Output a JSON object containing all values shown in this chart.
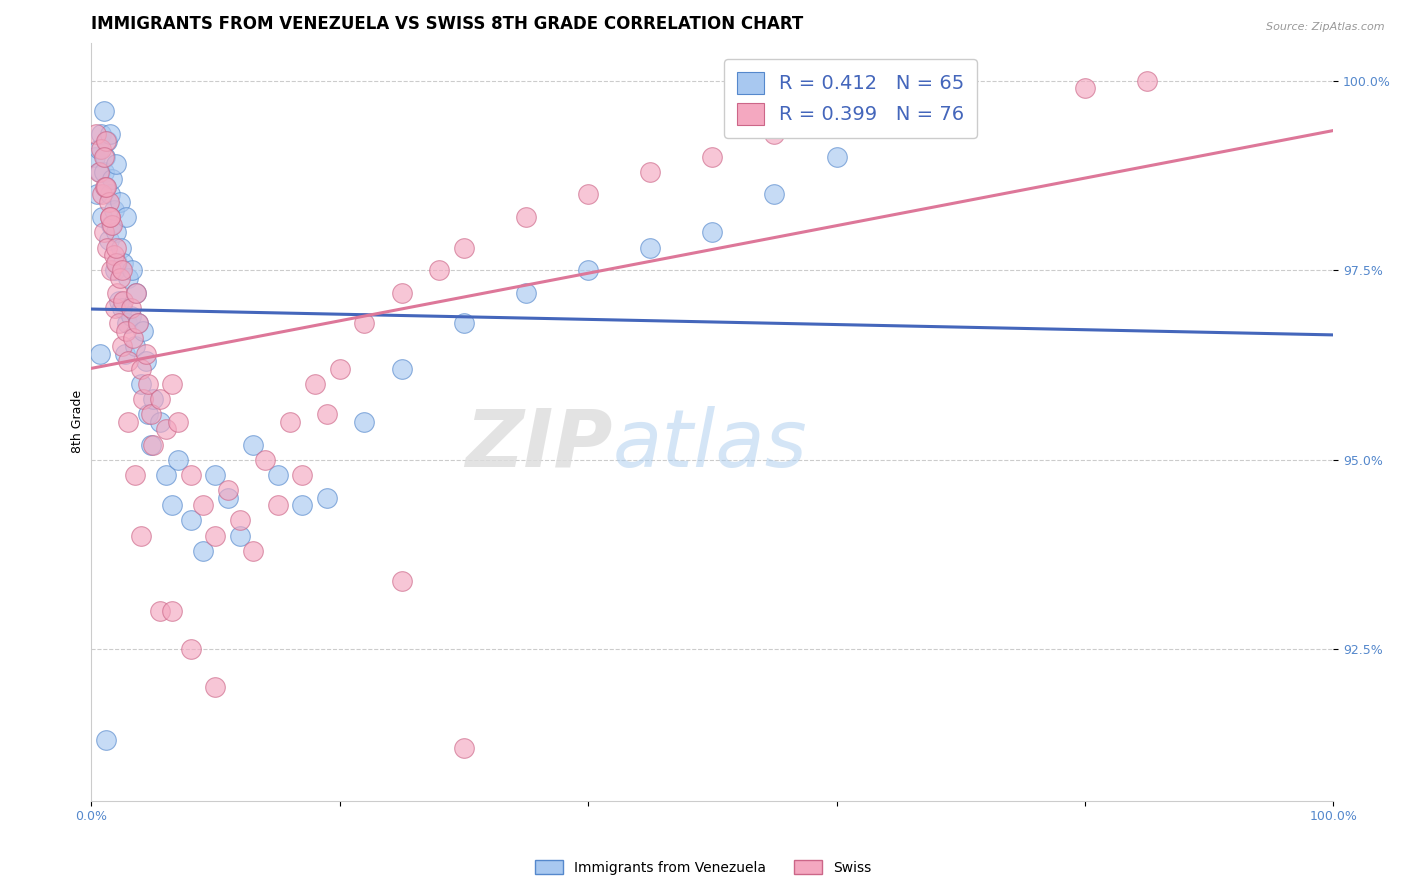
{
  "title": "IMMIGRANTS FROM VENEZUELA VS SWISS 8TH GRADE CORRELATION CHART",
  "source_text": "Source: ZipAtlas.com",
  "ylabel": "8th Grade",
  "legend1_label": "Immigrants from Venezuela",
  "legend2_label": "Swiss",
  "R1": 0.412,
  "N1": 65,
  "R2": 0.399,
  "N2": 76,
  "color1": "#A8C8F0",
  "color2": "#F4A8C0",
  "edge_color1": "#5588CC",
  "edge_color2": "#CC6688",
  "line_color1": "#4466BB",
  "line_color2": "#DD7799",
  "xlim": [
    0.0,
    1.0
  ],
  "ylim": [
    0.905,
    1.005
  ],
  "title_fontsize": 12,
  "axis_label_fontsize": 9,
  "tick_label_fontsize": 9,
  "tick_color": "#5588CC",
  "blue_x": [
    0.003,
    0.005,
    0.006,
    0.007,
    0.008,
    0.009,
    0.01,
    0.01,
    0.011,
    0.012,
    0.013,
    0.014,
    0.015,
    0.015,
    0.016,
    0.017,
    0.018,
    0.019,
    0.02,
    0.02,
    0.021,
    0.022,
    0.023,
    0.024,
    0.025,
    0.026,
    0.027,
    0.028,
    0.029,
    0.03,
    0.032,
    0.033,
    0.035,
    0.036,
    0.038,
    0.04,
    0.042,
    0.044,
    0.046,
    0.048,
    0.05,
    0.055,
    0.06,
    0.065,
    0.07,
    0.08,
    0.09,
    0.1,
    0.11,
    0.12,
    0.13,
    0.15,
    0.17,
    0.19,
    0.22,
    0.25,
    0.3,
    0.35,
    0.4,
    0.45,
    0.5,
    0.55,
    0.6,
    0.007,
    0.012
  ],
  "blue_y": [
    0.99,
    0.985,
    0.991,
    0.988,
    0.993,
    0.982,
    0.988,
    0.996,
    0.99,
    0.986,
    0.992,
    0.979,
    0.985,
    0.993,
    0.981,
    0.987,
    0.983,
    0.975,
    0.98,
    0.989,
    0.976,
    0.971,
    0.984,
    0.978,
    0.97,
    0.976,
    0.964,
    0.982,
    0.968,
    0.974,
    0.969,
    0.975,
    0.965,
    0.972,
    0.968,
    0.96,
    0.967,
    0.963,
    0.956,
    0.952,
    0.958,
    0.955,
    0.948,
    0.944,
    0.95,
    0.942,
    0.938,
    0.948,
    0.945,
    0.94,
    0.952,
    0.948,
    0.944,
    0.945,
    0.955,
    0.962,
    0.968,
    0.972,
    0.975,
    0.978,
    0.98,
    0.985,
    0.99,
    0.964,
    0.913
  ],
  "pink_x": [
    0.004,
    0.006,
    0.008,
    0.009,
    0.01,
    0.011,
    0.012,
    0.013,
    0.014,
    0.015,
    0.016,
    0.017,
    0.018,
    0.019,
    0.02,
    0.021,
    0.022,
    0.023,
    0.025,
    0.026,
    0.028,
    0.03,
    0.032,
    0.034,
    0.036,
    0.038,
    0.04,
    0.042,
    0.044,
    0.046,
    0.048,
    0.05,
    0.055,
    0.06,
    0.065,
    0.07,
    0.08,
    0.09,
    0.1,
    0.11,
    0.12,
    0.13,
    0.14,
    0.15,
    0.16,
    0.17,
    0.18,
    0.19,
    0.2,
    0.22,
    0.25,
    0.28,
    0.3,
    0.35,
    0.4,
    0.45,
    0.5,
    0.55,
    0.6,
    0.7,
    0.8,
    0.85,
    0.01,
    0.012,
    0.015,
    0.02,
    0.025,
    0.03,
    0.035,
    0.04,
    0.055,
    0.065,
    0.08,
    0.1,
    0.25,
    0.3
  ],
  "pink_y": [
    0.993,
    0.988,
    0.991,
    0.985,
    0.98,
    0.986,
    0.992,
    0.978,
    0.984,
    0.982,
    0.975,
    0.981,
    0.977,
    0.97,
    0.976,
    0.972,
    0.968,
    0.974,
    0.965,
    0.971,
    0.967,
    0.963,
    0.97,
    0.966,
    0.972,
    0.968,
    0.962,
    0.958,
    0.964,
    0.96,
    0.956,
    0.952,
    0.958,
    0.954,
    0.96,
    0.955,
    0.948,
    0.944,
    0.94,
    0.946,
    0.942,
    0.938,
    0.95,
    0.944,
    0.955,
    0.948,
    0.96,
    0.956,
    0.962,
    0.968,
    0.972,
    0.975,
    0.978,
    0.982,
    0.985,
    0.988,
    0.99,
    0.993,
    0.995,
    0.998,
    0.999,
    1.0,
    0.99,
    0.986,
    0.982,
    0.978,
    0.975,
    0.955,
    0.948,
    0.94,
    0.93,
    0.93,
    0.925,
    0.92,
    0.934,
    0.912
  ]
}
